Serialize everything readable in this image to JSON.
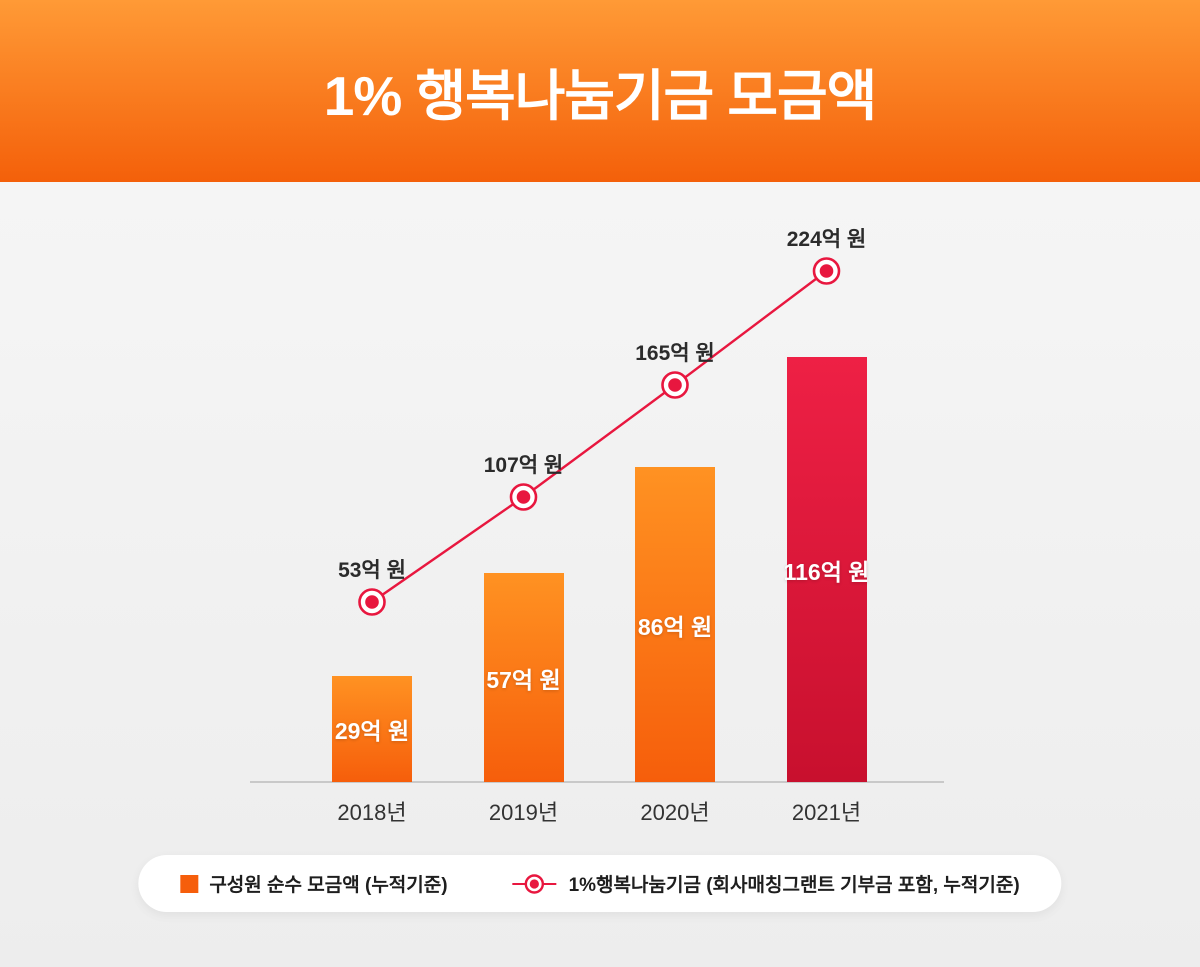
{
  "header": {
    "title": "1% 행복나눔기금 모금액"
  },
  "chart_data": {
    "type": "bar+line",
    "categories": [
      "2018년",
      "2019년",
      "2020년",
      "2021년"
    ],
    "series": [
      {
        "name": "구성원 순수 모금액 (누적기준)",
        "type": "bar",
        "values": [
          29,
          57,
          86,
          116
        ],
        "labels": [
          "29억 원",
          "57억 원",
          "86억 원",
          "116억 원"
        ],
        "unit": "억 원"
      },
      {
        "name": "1%행복나눔기금 (회사매칭그랜트 기부금 포함, 누적기준)",
        "type": "line",
        "values": [
          53,
          107,
          165,
          224
        ],
        "labels": [
          "53억 원",
          "107억 원",
          "165억 원",
          "224억 원"
        ],
        "unit": "억 원"
      }
    ],
    "highlight_category_index": 3,
    "legend_position": "bottom",
    "grid": false,
    "title": "1% 행복나눔기금 모금액"
  },
  "legend": {
    "bar_label": "구성원 순수 모금액 (누적기준)",
    "line_label": "1%행복나눔기금 (회사매칭그랜트 기부금 포함, 누적기준)"
  },
  "colors": {
    "banner_top": "#ff9a36",
    "banner_bottom": "#f4600a",
    "bar_top": "#ff9222",
    "bar_bottom": "#f65e0b",
    "bar_highlight_top": "#ee2045",
    "bar_highlight_bottom": "#c8102e",
    "line": "#e8173f",
    "axis": "#c9c9c9",
    "label_dark": "#2b2b2b",
    "bar_label_white": "#ffffff"
  }
}
